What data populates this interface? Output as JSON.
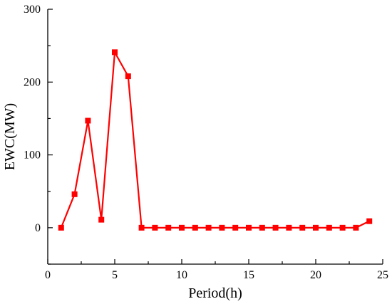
{
  "chart_data": {
    "type": "line",
    "title": "",
    "xlabel": "Period(h)",
    "ylabel": "EWC(MW)",
    "xlim": [
      0,
      25
    ],
    "ylim": [
      -50,
      300
    ],
    "x_ticks": [
      0,
      5,
      10,
      15,
      20,
      25
    ],
    "y_ticks": [
      0,
      100,
      200,
      300
    ],
    "grid": false,
    "legend": "none",
    "series": [
      {
        "color": "#ff0000",
        "marker": "square",
        "x": [
          1,
          2,
          3,
          4,
          5,
          6,
          7,
          8,
          9,
          10,
          11,
          12,
          13,
          14,
          15,
          16,
          17,
          18,
          19,
          20,
          21,
          22,
          23,
          24
        ],
        "values": [
          0,
          46,
          147,
          11,
          241,
          208,
          0,
          0,
          0,
          0,
          0,
          0,
          0,
          0,
          0,
          0,
          0,
          0,
          0,
          0,
          0,
          0,
          0,
          9
        ]
      }
    ]
  }
}
